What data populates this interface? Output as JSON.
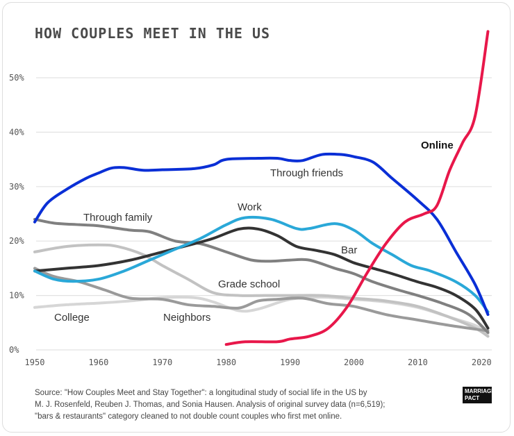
{
  "chart_data": {
    "type": "line",
    "title": "HOW COUPLES MEET IN THE US",
    "xlabel": "",
    "ylabel": "",
    "xlim": [
      1950,
      2021
    ],
    "ylim": [
      0,
      58
    ],
    "x_ticks": [
      "1950",
      "1960",
      "1970",
      "1980",
      "1990",
      "2000",
      "2010",
      "2020"
    ],
    "y_ticks": [
      "0%",
      "10%",
      "20%",
      "30%",
      "40%",
      "50%"
    ],
    "grid": "horizontal",
    "series": [
      {
        "name": "College",
        "color": "#d6d6d6",
        "points": [
          [
            1950,
            7.8
          ],
          [
            1955,
            8.3
          ],
          [
            1960,
            8.6
          ],
          [
            1965,
            9
          ],
          [
            1970,
            9.6
          ],
          [
            1975,
            9.6
          ],
          [
            1978,
            8.8
          ],
          [
            1982,
            7.2
          ],
          [
            1985,
            7.5
          ],
          [
            1990,
            9.3
          ],
          [
            1995,
            9.7
          ],
          [
            2000,
            9.3
          ],
          [
            2005,
            8.8
          ],
          [
            2010,
            7.8
          ],
          [
            2015,
            6
          ],
          [
            2019,
            4.5
          ],
          [
            2021,
            3
          ]
        ]
      },
      {
        "name": "Grade school",
        "color": "#c2c2c2",
        "points": [
          [
            1950,
            18
          ],
          [
            1955,
            19
          ],
          [
            1960,
            19.3
          ],
          [
            1963,
            19
          ],
          [
            1967,
            17.5
          ],
          [
            1970,
            15.5
          ],
          [
            1974,
            13
          ],
          [
            1978,
            10.5
          ],
          [
            1982,
            10
          ],
          [
            1986,
            10
          ],
          [
            1990,
            10
          ],
          [
            1995,
            10
          ],
          [
            2000,
            9.5
          ],
          [
            2005,
            9
          ],
          [
            2010,
            8
          ],
          [
            2015,
            6
          ],
          [
            2019,
            4
          ],
          [
            2021,
            2.5
          ]
        ]
      },
      {
        "name": "Neighbors",
        "color": "#9a9a9a",
        "points": [
          [
            1950,
            15
          ],
          [
            1953,
            13.5
          ],
          [
            1957,
            12.5
          ],
          [
            1961,
            11
          ],
          [
            1965,
            9.5
          ],
          [
            1970,
            9.3
          ],
          [
            1974,
            8.3
          ],
          [
            1978,
            8
          ],
          [
            1982,
            7.7
          ],
          [
            1985,
            9
          ],
          [
            1988,
            9.3
          ],
          [
            1992,
            9.5
          ],
          [
            1996,
            8.5
          ],
          [
            2000,
            8
          ],
          [
            2005,
            6.5
          ],
          [
            2010,
            5.5
          ],
          [
            2015,
            4.5
          ],
          [
            2021,
            3.5
          ]
        ]
      },
      {
        "name": "Through family",
        "color": "#808080",
        "points": [
          [
            1950,
            24
          ],
          [
            1953,
            23.3
          ],
          [
            1957,
            23
          ],
          [
            1960,
            22.8
          ],
          [
            1965,
            22
          ],
          [
            1968,
            21.7
          ],
          [
            1972,
            20
          ],
          [
            1976,
            19.5
          ],
          [
            1980,
            18
          ],
          [
            1984,
            16.5
          ],
          [
            1987,
            16.3
          ],
          [
            1990,
            16.5
          ],
          [
            1993,
            16.5
          ],
          [
            1997,
            15
          ],
          [
            2000,
            14
          ],
          [
            2003,
            12.5
          ],
          [
            2007,
            11
          ],
          [
            2010,
            10
          ],
          [
            2014,
            8.5
          ],
          [
            2018,
            6.5
          ],
          [
            2021,
            3.2
          ]
        ]
      },
      {
        "name": "Bar",
        "color": "#333333",
        "points": [
          [
            1950,
            14.5
          ],
          [
            1955,
            15
          ],
          [
            1960,
            15.5
          ],
          [
            1965,
            16.5
          ],
          [
            1970,
            18
          ],
          [
            1975,
            19.5
          ],
          [
            1978,
            20.5
          ],
          [
            1982,
            22.2
          ],
          [
            1985,
            22.2
          ],
          [
            1988,
            21
          ],
          [
            1991,
            19
          ],
          [
            1994,
            18.3
          ],
          [
            1997,
            17.5
          ],
          [
            2000,
            16
          ],
          [
            2003,
            15
          ],
          [
            2006,
            14
          ],
          [
            2010,
            12.5
          ],
          [
            2013,
            11.5
          ],
          [
            2016,
            10
          ],
          [
            2019,
            7.5
          ],
          [
            2021,
            4
          ]
        ]
      },
      {
        "name": "Work",
        "color": "#2aa8d8",
        "points": [
          [
            1950,
            14.5
          ],
          [
            1953,
            13
          ],
          [
            1956,
            12.6
          ],
          [
            1960,
            13
          ],
          [
            1964,
            14.5
          ],
          [
            1968,
            16.5
          ],
          [
            1972,
            18.5
          ],
          [
            1976,
            20.5
          ],
          [
            1980,
            23
          ],
          [
            1983,
            24.3
          ],
          [
            1987,
            24
          ],
          [
            1991,
            22.3
          ],
          [
            1993,
            22.3
          ],
          [
            1997,
            23.2
          ],
          [
            2000,
            22
          ],
          [
            2003,
            19.5
          ],
          [
            2006,
            17.5
          ],
          [
            2009,
            15.5
          ],
          [
            2012,
            14.5
          ],
          [
            2016,
            12.5
          ],
          [
            2019,
            10
          ],
          [
            2021,
            7
          ]
        ]
      },
      {
        "name": "Through friends",
        "color": "#0a2fd6",
        "points": [
          [
            1950,
            23.5
          ],
          [
            1952,
            27
          ],
          [
            1955,
            29.5
          ],
          [
            1958,
            31.5
          ],
          [
            1960,
            32.5
          ],
          [
            1962,
            33.4
          ],
          [
            1964,
            33.5
          ],
          [
            1967,
            33
          ],
          [
            1970,
            33.1
          ],
          [
            1975,
            33.3
          ],
          [
            1978,
            34
          ],
          [
            1980,
            35
          ],
          [
            1985,
            35.2
          ],
          [
            1988,
            35.2
          ],
          [
            1990,
            34.8
          ],
          [
            1992,
            34.8
          ],
          [
            1995,
            35.9
          ],
          [
            1998,
            35.9
          ],
          [
            2000,
            35.5
          ],
          [
            2003,
            34.5
          ],
          [
            2006,
            31.5
          ],
          [
            2010,
            27.5
          ],
          [
            2013,
            24
          ],
          [
            2016,
            18
          ],
          [
            2019,
            12
          ],
          [
            2021,
            6.5
          ]
        ]
      },
      {
        "name": "Online",
        "color": "#e8174a",
        "points": [
          [
            1980,
            1
          ],
          [
            1983,
            1.5
          ],
          [
            1988,
            1.5
          ],
          [
            1990,
            2
          ],
          [
            1993,
            2.5
          ],
          [
            1996,
            4
          ],
          [
            1999,
            8
          ],
          [
            2002,
            14
          ],
          [
            2005,
            19.5
          ],
          [
            2008,
            23.5
          ],
          [
            2011,
            25
          ],
          [
            2013,
            26.5
          ],
          [
            2015,
            33
          ],
          [
            2017,
            38
          ],
          [
            2019,
            43
          ],
          [
            2021,
            58.5
          ]
        ]
      }
    ]
  },
  "source": {
    "line1": "Source: \"How Couples Meet and Stay Together\": a longitudinal study of social life in the US by",
    "line2": "M. J. Rosenfeld, Reuben J. Thomas, and Sonia Hausen. Analysis of original survey data (n=6,519);",
    "line3": "\"bars & restaurants\" category cleaned to not double count couples who first met online."
  },
  "logo": {
    "line1": "MARRIAGE",
    "line2": "PACT"
  }
}
